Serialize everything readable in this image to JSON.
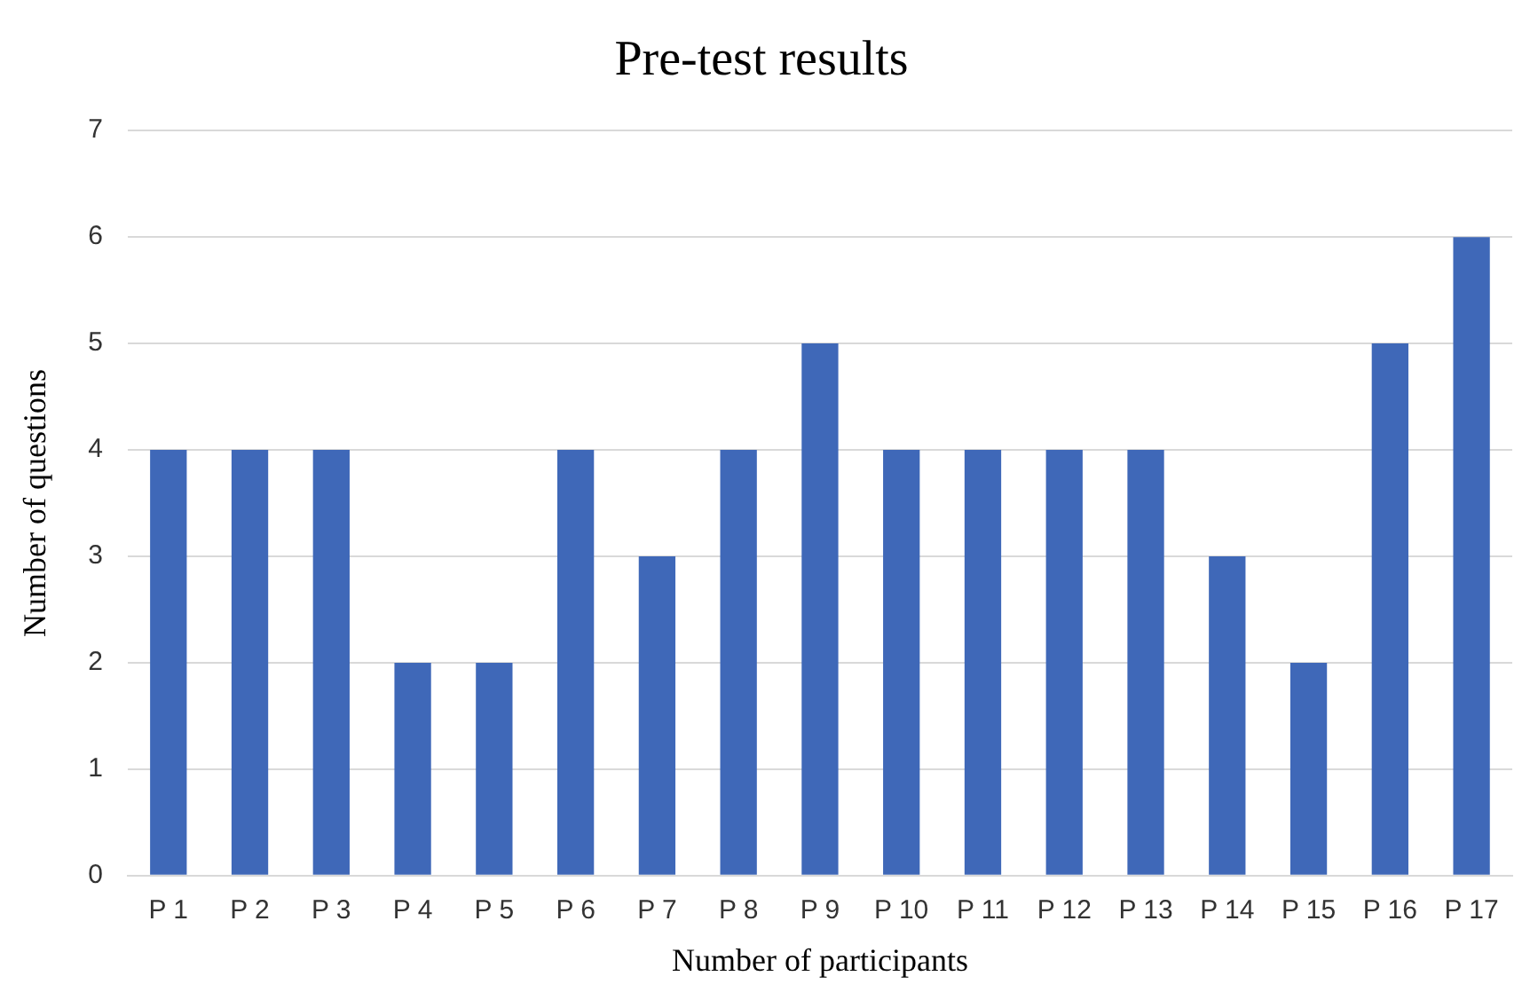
{
  "chart_data": {
    "type": "bar",
    "title": "Pre-test results",
    "xlabel": "Number of participants",
    "ylabel": "Number of questions",
    "categories": [
      "P 1",
      "P 2",
      "P 3",
      "P 4",
      "P 5",
      "P 6",
      "P 7",
      "P 8",
      "P 9",
      "P 10",
      "P 11",
      "P 12",
      "P 13",
      "P 14",
      "P 15",
      "P 16",
      "P 17"
    ],
    "values": [
      4,
      4,
      4,
      2,
      2,
      4,
      3,
      4,
      5,
      4,
      4,
      4,
      4,
      3,
      2,
      5,
      6
    ],
    "color": "#3f68b8",
    "ylim": [
      0,
      7
    ],
    "yticks": [
      0,
      1,
      2,
      3,
      4,
      5,
      6,
      7
    ],
    "grid": "y",
    "legend": false
  }
}
